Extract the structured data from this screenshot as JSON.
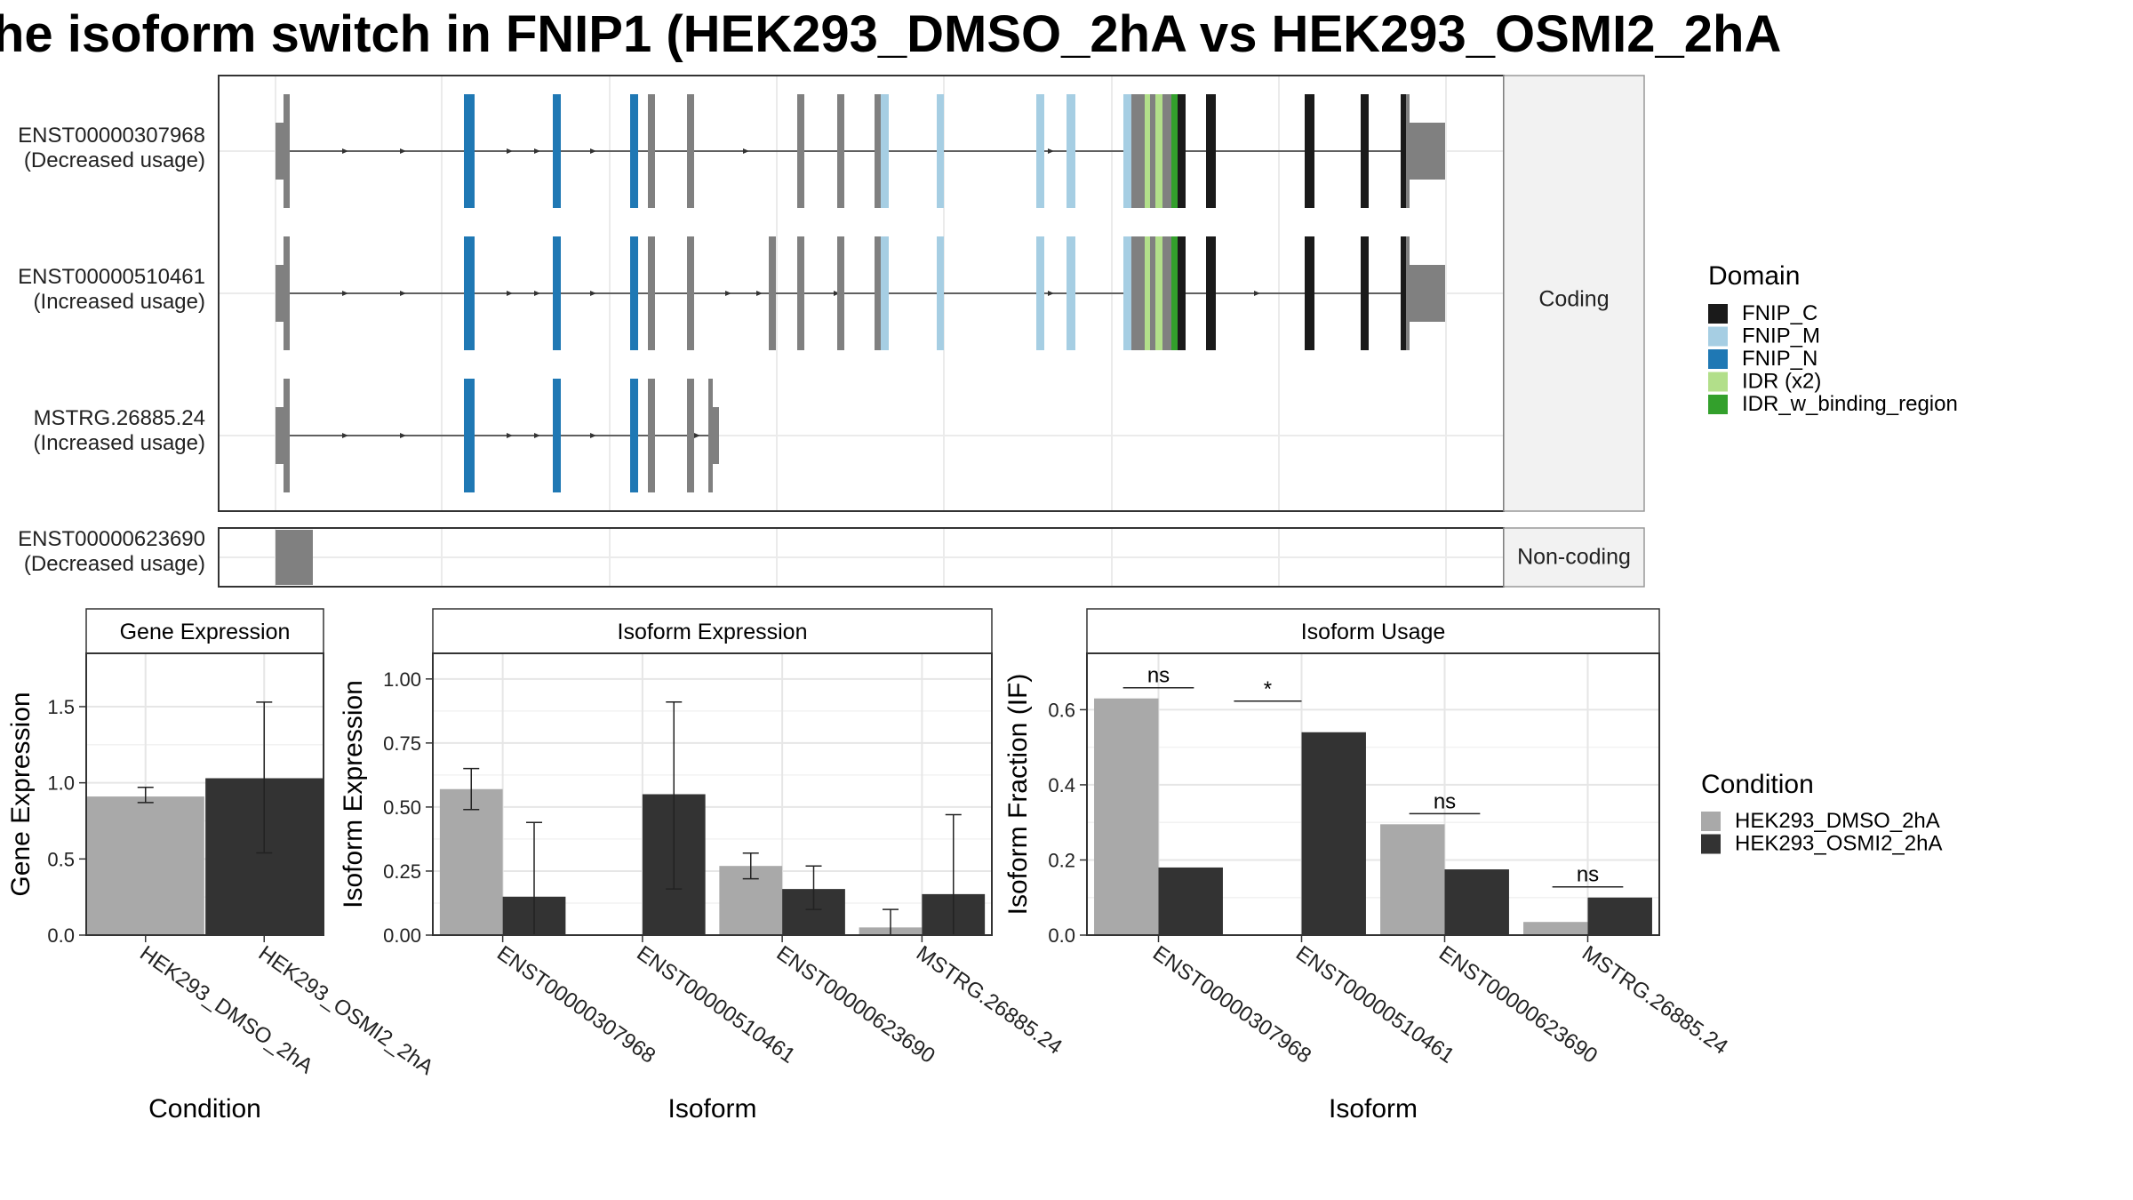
{
  "title": "he isoform switch in FNIP1 (HEK293_DMSO_2hA vs HEK293_OSMI2_2hA",
  "colors": {
    "FNIP_C": "#1a1a1a",
    "FNIP_M": "#a6cee3",
    "FNIP_N": "#1f78b4",
    "IDR (x2)": "#b2df8a",
    "IDR_w_binding_region": "#33a02c",
    "noncoding": "#808080",
    "cond1": "#a9a9a9",
    "cond2": "#333333"
  },
  "structure": {
    "coding_strip": "Coding",
    "noncoding_strip": "Non-coding",
    "transcripts": [
      {
        "name": "ENST00000307968",
        "usage": "(Decreased usage)"
      },
      {
        "name": "ENST00000510461",
        "usage": "(Increased usage)"
      },
      {
        "name": "MSTRG.26885.24",
        "usage": "(Increased usage)"
      },
      {
        "name": "ENST00000623690",
        "usage": "(Decreased usage)"
      }
    ]
  },
  "domain_legend": {
    "title": "Domain",
    "items": [
      "FNIP_C",
      "FNIP_M",
      "FNIP_N",
      "IDR (x2)",
      "IDR_w_binding_region"
    ]
  },
  "condition_legend": {
    "title": "Condition",
    "items": [
      "HEK293_DMSO_2hA",
      "HEK293_OSMI2_2hA"
    ]
  },
  "chart_data": [
    {
      "type": "bar",
      "title": "Gene Expression",
      "xlabel": "Condition",
      "ylabel": "Gene Expression",
      "categories": [
        "HEK293_DMSO_2hA",
        "HEK293_OSMI2_2hA"
      ],
      "values": [
        0.91,
        1.03
      ],
      "error_low": [
        0.87,
        0.54
      ],
      "error_high": [
        0.97,
        1.53
      ],
      "ylim": [
        0,
        1.85
      ],
      "yticks": [
        0.0,
        0.5,
        1.0,
        1.5
      ],
      "ytick_labels": [
        "0.0",
        "0.5",
        "1.0",
        "1.5"
      ]
    },
    {
      "type": "bar",
      "title": "Isoform Expression",
      "xlabel": "Isoform",
      "ylabel": "Isoform Expression",
      "categories": [
        "ENST00000307968",
        "ENST00000510461",
        "ENST00000623690",
        "MSTRG.26885.24"
      ],
      "series": [
        {
          "name": "HEK293_DMSO_2hA",
          "values": [
            0.57,
            0.0,
            0.27,
            0.03
          ],
          "error_low": [
            0.49,
            0.0,
            0.22,
            0.0
          ],
          "error_high": [
            0.65,
            0.0,
            0.32,
            0.1
          ]
        },
        {
          "name": "HEK293_OSMI2_2hA",
          "values": [
            0.15,
            0.55,
            0.18,
            0.16
          ],
          "error_low": [
            0.0,
            0.18,
            0.1,
            0.0
          ],
          "error_high": [
            0.44,
            0.91,
            0.27,
            0.47
          ]
        }
      ],
      "ylim": [
        0,
        1.1
      ],
      "yticks": [
        0.0,
        0.25,
        0.5,
        0.75,
        1.0
      ],
      "ytick_labels": [
        "0.00",
        "0.25",
        "0.50",
        "0.75",
        "1.00"
      ]
    },
    {
      "type": "bar",
      "title": "Isoform Usage",
      "xlabel": "Isoform",
      "ylabel": "Isoform Fraction (IF)",
      "categories": [
        "ENST00000307968",
        "ENST00000510461",
        "ENST00000623690",
        "MSTRG.26885.24"
      ],
      "series": [
        {
          "name": "HEK293_DMSO_2hA",
          "values": [
            0.63,
            0.0,
            0.295,
            0.035
          ]
        },
        {
          "name": "HEK293_OSMI2_2hA",
          "values": [
            0.18,
            0.54,
            0.175,
            0.1
          ]
        }
      ],
      "significance": [
        "ns",
        "*",
        "ns",
        "ns"
      ],
      "ylim": [
        0,
        0.75
      ],
      "yticks": [
        0.0,
        0.2,
        0.4,
        0.6
      ],
      "ytick_labels": [
        "0.0",
        "0.2",
        "0.4",
        "0.6"
      ]
    }
  ]
}
